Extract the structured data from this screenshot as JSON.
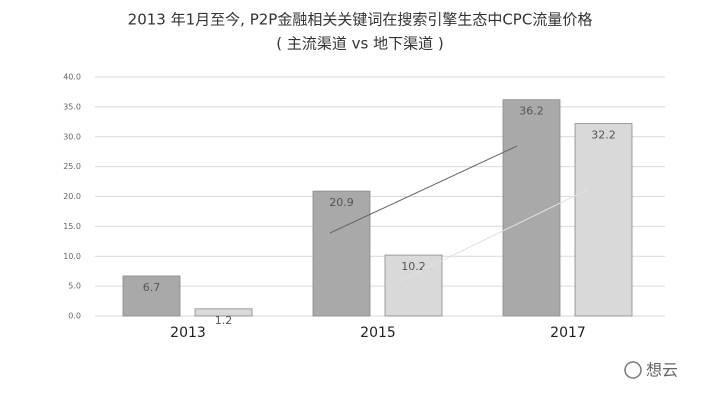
{
  "chart_data": {
    "type": "bar",
    "title": "2013 年1月至今, P2P金融相关关键词在搜索引擎生态中CPC流量价格",
    "subtitle": "( 主流渠道 vs 地下渠道 )",
    "categories": [
      "2013",
      "2015",
      "2017"
    ],
    "series": [
      {
        "color": "#a9a9a9",
        "values": [
          6.7,
          20.9,
          36.2
        ]
      },
      {
        "color": "#d9d9d9",
        "values": [
          1.2,
          10.2,
          32.2
        ]
      }
    ],
    "ylim": [
      0,
      40
    ],
    "yticks": [
      {
        "value": 0,
        "label": "0.0"
      },
      {
        "value": 5,
        "label": "5.0"
      },
      {
        "value": 10,
        "label": "10.0"
      },
      {
        "value": 15,
        "label": "15.0"
      },
      {
        "value": 20,
        "label": "20.0"
      },
      {
        "value": 25,
        "label": "25.0"
      },
      {
        "value": 30,
        "label": "30.0"
      },
      {
        "value": 35,
        "label": "35.0"
      },
      {
        "value": 40,
        "label": "40.0"
      }
    ],
    "grid": true,
    "watermark": "想云"
  }
}
